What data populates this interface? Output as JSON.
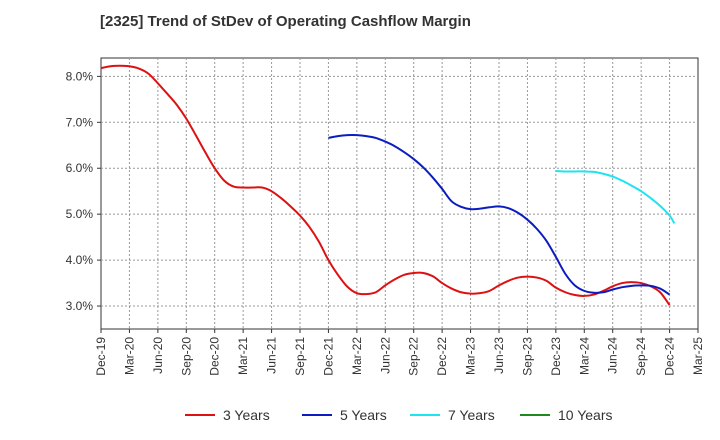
{
  "chart_data": {
    "type": "line",
    "title": "[2325]  Trend of StDev of Operating Cashflow Margin",
    "xlabel": "",
    "ylabel": "",
    "x_ticks": [
      "Dec-19",
      "Mar-20",
      "Jun-20",
      "Sep-20",
      "Dec-20",
      "Mar-21",
      "Jun-21",
      "Sep-21",
      "Dec-21",
      "Mar-22",
      "Jun-22",
      "Sep-22",
      "Dec-22",
      "Mar-23",
      "Jun-23",
      "Sep-23",
      "Dec-23",
      "Mar-24",
      "Jun-24",
      "Sep-24",
      "Dec-24",
      "Mar-25"
    ],
    "y_ticks": [
      "3.0%",
      "4.0%",
      "5.0%",
      "6.0%",
      "7.0%",
      "8.0%"
    ],
    "ylim": [
      2.5,
      8.4
    ],
    "grid": true,
    "legend_position": "bottom",
    "series": [
      {
        "name": "3 Years",
        "color": "#dd1111",
        "points": [
          [
            "Dec-19",
            8.18
          ],
          [
            "Jan-20",
            8.22
          ],
          [
            "Feb-20",
            8.23
          ],
          [
            "Mar-20",
            8.22
          ],
          [
            "Apr-20",
            8.17
          ],
          [
            "May-20",
            8.06
          ],
          [
            "Jun-20",
            7.85
          ],
          [
            "Jul-20",
            7.62
          ],
          [
            "Aug-20",
            7.38
          ],
          [
            "Sep-20",
            7.08
          ],
          [
            "Oct-20",
            6.72
          ],
          [
            "Nov-20",
            6.35
          ],
          [
            "Dec-20",
            6.0
          ],
          [
            "Jan-21",
            5.73
          ],
          [
            "Feb-21",
            5.6
          ],
          [
            "Mar-21",
            5.58
          ],
          [
            "Apr-21",
            5.58
          ],
          [
            "May-21",
            5.58
          ],
          [
            "Jun-21",
            5.5
          ],
          [
            "Jul-21",
            5.35
          ],
          [
            "Aug-21",
            5.17
          ],
          [
            "Sep-21",
            4.97
          ],
          [
            "Oct-21",
            4.72
          ],
          [
            "Nov-21",
            4.4
          ],
          [
            "Dec-21",
            4.0
          ],
          [
            "Jan-22",
            3.68
          ],
          [
            "Feb-22",
            3.42
          ],
          [
            "Mar-22",
            3.28
          ],
          [
            "Apr-22",
            3.26
          ],
          [
            "May-22",
            3.3
          ],
          [
            "Jun-22",
            3.45
          ],
          [
            "Jul-22",
            3.58
          ],
          [
            "Aug-22",
            3.68
          ],
          [
            "Sep-22",
            3.72
          ],
          [
            "Oct-22",
            3.72
          ],
          [
            "Nov-22",
            3.65
          ],
          [
            "Dec-22",
            3.5
          ],
          [
            "Jan-23",
            3.38
          ],
          [
            "Feb-23",
            3.3
          ],
          [
            "Mar-23",
            3.27
          ],
          [
            "Apr-23",
            3.28
          ],
          [
            "May-23",
            3.33
          ],
          [
            "Jun-23",
            3.45
          ],
          [
            "Jul-23",
            3.55
          ],
          [
            "Aug-23",
            3.62
          ],
          [
            "Sep-23",
            3.64
          ],
          [
            "Oct-23",
            3.62
          ],
          [
            "Nov-23",
            3.55
          ],
          [
            "Dec-23",
            3.4
          ],
          [
            "Jan-24",
            3.3
          ],
          [
            "Feb-24",
            3.24
          ],
          [
            "Mar-24",
            3.22
          ],
          [
            "Apr-24",
            3.25
          ],
          [
            "May-24",
            3.33
          ],
          [
            "Jun-24",
            3.43
          ],
          [
            "Jul-24",
            3.5
          ],
          [
            "Aug-24",
            3.52
          ],
          [
            "Sep-24",
            3.5
          ],
          [
            "Oct-24",
            3.43
          ],
          [
            "Nov-24",
            3.3
          ],
          [
            "Dec-24",
            3.02
          ]
        ]
      },
      {
        "name": "5 Years",
        "color": "#0b1dbf",
        "points": [
          [
            "Dec-21",
            6.66
          ],
          [
            "Jan-22",
            6.7
          ],
          [
            "Feb-22",
            6.72
          ],
          [
            "Mar-22",
            6.72
          ],
          [
            "Apr-22",
            6.7
          ],
          [
            "May-22",
            6.66
          ],
          [
            "Jun-22",
            6.58
          ],
          [
            "Jul-22",
            6.48
          ],
          [
            "Aug-22",
            6.35
          ],
          [
            "Sep-22",
            6.2
          ],
          [
            "Oct-22",
            6.02
          ],
          [
            "Nov-22",
            5.8
          ],
          [
            "Dec-22",
            5.55
          ],
          [
            "Jan-23",
            5.28
          ],
          [
            "Feb-23",
            5.16
          ],
          [
            "Mar-23",
            5.11
          ],
          [
            "Apr-23",
            5.12
          ],
          [
            "May-23",
            5.15
          ],
          [
            "Jun-23",
            5.17
          ],
          [
            "Jul-23",
            5.13
          ],
          [
            "Aug-23",
            5.03
          ],
          [
            "Sep-23",
            4.88
          ],
          [
            "Oct-23",
            4.68
          ],
          [
            "Nov-23",
            4.42
          ],
          [
            "Dec-23",
            4.07
          ],
          [
            "Jan-24",
            3.7
          ],
          [
            "Feb-24",
            3.45
          ],
          [
            "Mar-24",
            3.33
          ],
          [
            "Apr-24",
            3.29
          ],
          [
            "May-24",
            3.3
          ],
          [
            "Jun-24",
            3.36
          ],
          [
            "Jul-24",
            3.41
          ],
          [
            "Aug-24",
            3.44
          ],
          [
            "Sep-24",
            3.45
          ],
          [
            "Oct-24",
            3.44
          ],
          [
            "Nov-24",
            3.38
          ],
          [
            "Dec-24",
            3.25
          ]
        ]
      },
      {
        "name": "7 Years",
        "color": "#1ee3f0",
        "points": [
          [
            "Dec-23",
            5.94
          ],
          [
            "Jan-24",
            5.93
          ],
          [
            "Feb-24",
            5.93
          ],
          [
            "Mar-24",
            5.93
          ],
          [
            "Apr-24",
            5.92
          ],
          [
            "May-24",
            5.88
          ],
          [
            "Jun-24",
            5.82
          ],
          [
            "Jul-24",
            5.73
          ],
          [
            "Aug-24",
            5.62
          ],
          [
            "Sep-24",
            5.5
          ],
          [
            "Oct-24",
            5.35
          ],
          [
            "Nov-24",
            5.18
          ],
          [
            "Dec-24",
            4.97
          ],
          [
            "Dec-24+",
            4.8
          ]
        ]
      },
      {
        "name": "10 Years",
        "color": "#1e8a1e",
        "points": []
      }
    ]
  }
}
